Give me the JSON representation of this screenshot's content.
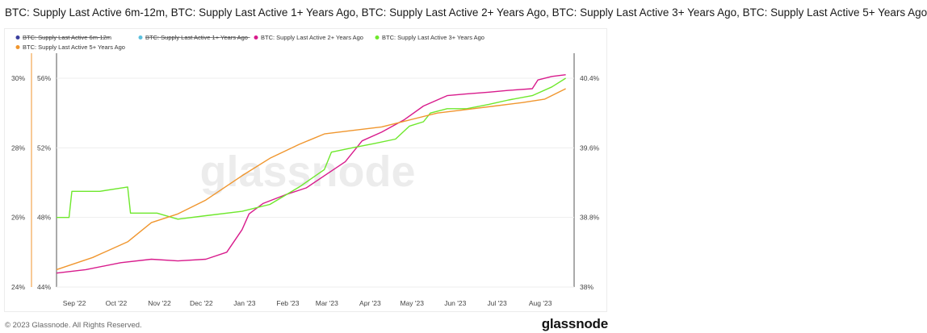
{
  "title": "BTC: Supply Last Active 6m-12m, BTC: Supply Last Active 1+ Years Ago, BTC: Supply Last Active 2+ Years Ago, BTC: Supply Last Active 3+ Years Ago, BTC: Supply Last Active 5+ Years Ago",
  "footer": {
    "copyright": "© 2023 Glassnode. All Rights Reserved.",
    "brand": "glassnode"
  },
  "watermark": "glassnode",
  "chart_data": {
    "type": "line",
    "x_ticks": [
      "Sep '22",
      "Oct '22",
      "Nov '22",
      "Dec '22",
      "Jan '23",
      "Feb '23",
      "Mar '23",
      "Apr '23",
      "May '23",
      "Jun '23",
      "Jul '23",
      "Aug '23"
    ],
    "left_axis_outer": {
      "ticks": [
        "24%",
        "26%",
        "28%",
        "30%"
      ],
      "range": [
        24,
        30
      ]
    },
    "left_axis_inner": {
      "ticks": [
        "44%",
        "48%",
        "52%",
        "56%"
      ],
      "range": [
        44,
        56
      ]
    },
    "right_axis": {
      "ticks": [
        "38%",
        "38.8%",
        "39.6%",
        "40.4%"
      ],
      "range": [
        38,
        40.4
      ]
    },
    "grid": true,
    "legend_position": "top-left",
    "series": [
      {
        "name": "BTC: Supply Last Active 6m-12m",
        "color": "#3b3f9e",
        "disabled": true,
        "values": []
      },
      {
        "name": "BTC: Supply Last Active 1+ Years Ago",
        "color": "#5bc0de",
        "disabled": true,
        "values": []
      },
      {
        "name": "BTC: Supply Last Active 2+ Years Ago",
        "color": "#d81b8c",
        "axis": "left_inner",
        "x": [
          "2022-08-25",
          "2022-09-15",
          "2022-10-10",
          "2022-11-01",
          "2022-11-20",
          "2022-12-10",
          "2022-12-25",
          "2023-01-05",
          "2023-01-10",
          "2023-01-20",
          "2023-02-05",
          "2023-02-20",
          "2023-03-05",
          "2023-03-20",
          "2023-04-01",
          "2023-04-15",
          "2023-05-01",
          "2023-05-15",
          "2023-06-01",
          "2023-06-15",
          "2023-07-01",
          "2023-07-15",
          "2023-08-01",
          "2023-08-05",
          "2023-08-15",
          "2023-08-25"
        ],
        "values": [
          44.8,
          45.0,
          45.4,
          45.6,
          45.5,
          45.6,
          46.0,
          47.3,
          48.2,
          48.8,
          49.3,
          49.7,
          50.4,
          51.2,
          52.4,
          52.9,
          53.6,
          54.4,
          55.0,
          55.1,
          55.2,
          55.3,
          55.4,
          55.9,
          56.1,
          56.2
        ]
      },
      {
        "name": "BTC: Supply Last Active 3+ Years Ago",
        "color": "#6ee82c",
        "axis": "right",
        "x": [
          "2022-08-25",
          "2022-09-03",
          "2022-09-05",
          "2022-09-25",
          "2022-10-15",
          "2022-10-17",
          "2022-11-05",
          "2022-11-20",
          "2022-12-10",
          "2023-01-05",
          "2023-01-25",
          "2023-02-15",
          "2023-03-05",
          "2023-03-10",
          "2023-03-25",
          "2023-04-10",
          "2023-04-25",
          "2023-05-05",
          "2023-05-15",
          "2023-05-20",
          "2023-06-01",
          "2023-06-15",
          "2023-07-01",
          "2023-07-15",
          "2023-08-01",
          "2023-08-15",
          "2023-08-25"
        ],
        "values": [
          38.8,
          38.8,
          39.1,
          39.1,
          39.15,
          38.85,
          38.85,
          38.78,
          38.82,
          38.87,
          38.95,
          39.15,
          39.35,
          39.55,
          39.6,
          39.65,
          39.7,
          39.85,
          39.9,
          40.0,
          40.05,
          40.05,
          40.1,
          40.15,
          40.2,
          40.3,
          40.4
        ]
      },
      {
        "name": "BTC: Supply Last Active 5+ Years Ago",
        "color": "#f0962e",
        "axis": "left_outer",
        "x": [
          "2022-08-25",
          "2022-09-20",
          "2022-10-15",
          "2022-11-01",
          "2022-11-20",
          "2022-12-10",
          "2023-01-05",
          "2023-01-25",
          "2023-02-15",
          "2023-03-05",
          "2023-03-25",
          "2023-04-15",
          "2023-05-05",
          "2023-05-25",
          "2023-06-15",
          "2023-07-05",
          "2023-07-25",
          "2023-08-10",
          "2023-08-25"
        ],
        "values": [
          24.5,
          24.85,
          25.3,
          25.85,
          26.1,
          26.5,
          27.2,
          27.7,
          28.1,
          28.4,
          28.5,
          28.6,
          28.8,
          29.0,
          29.1,
          29.2,
          29.3,
          29.4,
          29.7
        ]
      }
    ]
  }
}
